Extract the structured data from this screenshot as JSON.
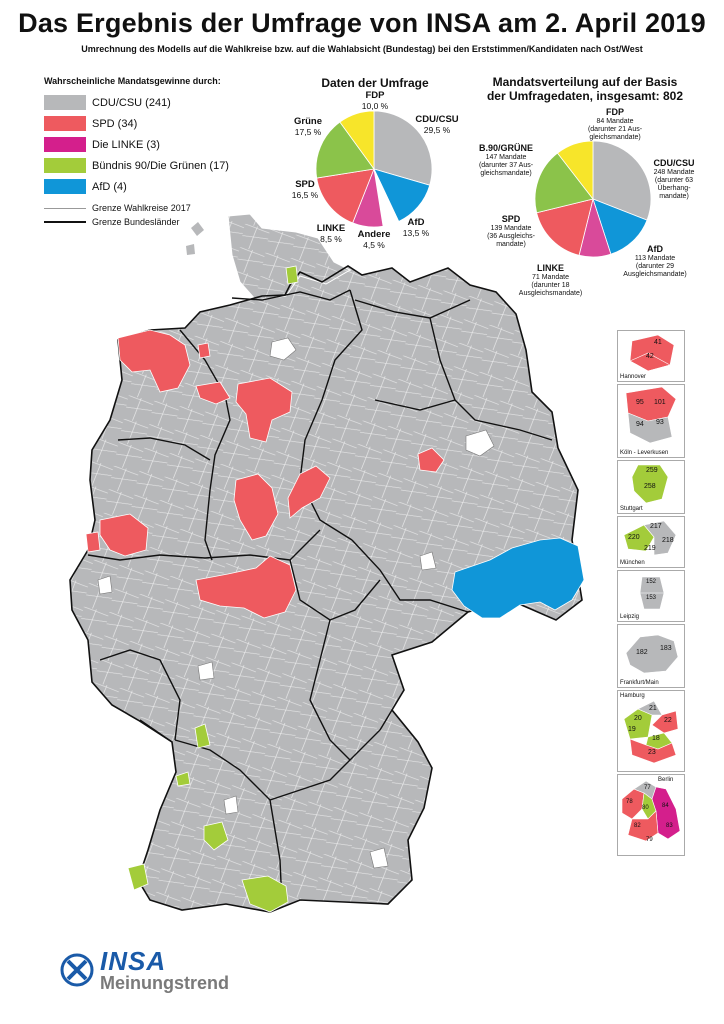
{
  "title": "Das Ergebnis der Umfrage von INSA am 2. April 2019",
  "subtitle": "Umrechnung des Modells auf die Wahlkreise bzw. auf die Wahlabsicht (Bundestag) bei den Erststimmen/Kandidaten nach Ost/West",
  "legend": {
    "heading": "Wahrscheinliche Mandatsgewinne durch:",
    "items": [
      {
        "label": "CDU/CSU (241)",
        "color": "#b7b8ba"
      },
      {
        "label": "SPD (34)",
        "color": "#ee5a5f"
      },
      {
        "label": "Die LINKE (3)",
        "color": "#d41f8c"
      },
      {
        "label": "Bündnis 90/Die Grünen (17)",
        "color": "#a3cc3a"
      },
      {
        "label": "AfD (4)",
        "color": "#1096d8"
      }
    ],
    "line_wahlkreise": "Grenze Wahlkreise 2017",
    "line_laender": "Grenze Bundesländer"
  },
  "survey_pie": {
    "title": "Daten der Umfrage",
    "slices": [
      {
        "party": "CDU/CSU",
        "value": 29.5,
        "label": "29,5 %",
        "color": "#b7b8ba"
      },
      {
        "party": "AfD",
        "value": 13.5,
        "label": "13,5 %",
        "color": "#1096d8"
      },
      {
        "party": "Andere",
        "value": 4.5,
        "label": "4,5 %",
        "color": "#ffffff"
      },
      {
        "party": "LINKE",
        "value": 8.5,
        "label": "8,5 %",
        "color": "#d94a9a"
      },
      {
        "party": "SPD",
        "value": 16.5,
        "label": "16,5 %",
        "color": "#ee5a5f"
      },
      {
        "party": "Grüne",
        "value": 17.5,
        "label": "17,5 %",
        "color": "#8bc34a"
      },
      {
        "party": "FDP",
        "value": 10.0,
        "label": "10,0 %",
        "color": "#f7e52a"
      }
    ]
  },
  "seats_pie": {
    "title_line1": "Mandatsverteilung auf der Basis",
    "title_line2": "der Umfragedaten, insgesamt: 802",
    "slices": [
      {
        "party": "CDU/CSU",
        "value": 248,
        "detail": [
          "248 Mandate",
          "(darunter 63",
          "Überhang-",
          "mandate)"
        ],
        "color": "#b7b8ba"
      },
      {
        "party": "AfD",
        "value": 113,
        "detail": [
          "113 Mandate",
          "(darunter 29",
          "Ausgleichsmandate)"
        ],
        "color": "#1096d8"
      },
      {
        "party": "LINKE",
        "value": 71,
        "detail": [
          "71 Mandate",
          "(darunter 18",
          "Ausgleichsmandate)"
        ],
        "color": "#d94a9a"
      },
      {
        "party": "SPD",
        "value": 139,
        "detail": [
          "139 Mandate",
          "(36 Ausgleichs-",
          "mandate)"
        ],
        "color": "#ee5a5f"
      },
      {
        "party": "B.90/GRÜNE",
        "value": 147,
        "detail": [
          "147 Mandate",
          "(darunter 37 Aus-",
          "gleichsmandate)"
        ],
        "color": "#8bc34a"
      },
      {
        "party": "FDP",
        "value": 84,
        "detail": [
          "84 Mandate",
          "(darunter 21 Aus-",
          "gleichsmandate)"
        ],
        "color": "#f7e52a"
      }
    ]
  },
  "insets": [
    {
      "name": "Hannover",
      "numbers": [
        "41",
        "42"
      ]
    },
    {
      "name": "Köln - Leverkusen",
      "numbers": [
        "95",
        "101",
        "94",
        "93"
      ]
    },
    {
      "name": "Stuttgart",
      "numbers": [
        "259",
        "258"
      ]
    },
    {
      "name": "München",
      "numbers": [
        "217",
        "220",
        "218",
        "219"
      ]
    },
    {
      "name": "Leipzig",
      "numbers": [
        "152",
        "153"
      ]
    },
    {
      "name": "Frankfurt/Main",
      "numbers": [
        "182",
        "183"
      ]
    },
    {
      "name": "Hamburg",
      "numbers": [
        "21",
        "20",
        "22",
        "19",
        "18",
        "23"
      ]
    },
    {
      "name": "Berlin",
      "numbers": [
        "77",
        "78",
        "80",
        "84",
        "82",
        "83",
        "79"
      ]
    }
  ],
  "logo": {
    "brand": "INSA",
    "sub": "Meinungstrend"
  },
  "colors": {
    "map_fill": "#b7b8ba",
    "spd": "#ee5a5f",
    "linke": "#d41f8c",
    "gruene": "#a3cc3a",
    "afd": "#1096d8",
    "city_white": "#ffffff"
  }
}
